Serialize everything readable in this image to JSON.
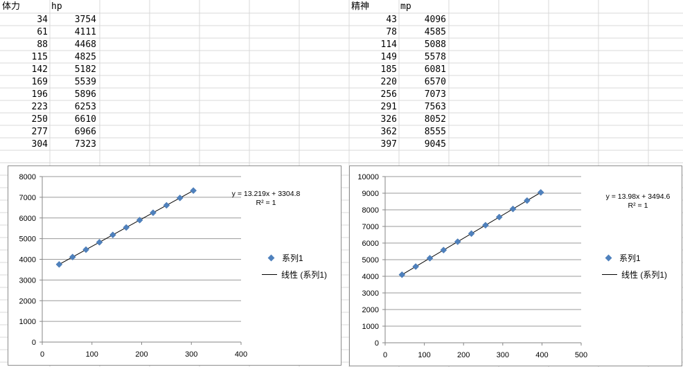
{
  "sheet": {
    "left_table": {
      "headers": [
        "体力",
        "hp"
      ],
      "rows": [
        [
          "34",
          "3754"
        ],
        [
          "61",
          "4111"
        ],
        [
          "88",
          "4468"
        ],
        [
          "115",
          "4825"
        ],
        [
          "142",
          "5182"
        ],
        [
          "169",
          "5539"
        ],
        [
          "196",
          "5896"
        ],
        [
          "223",
          "6253"
        ],
        [
          "250",
          "6610"
        ],
        [
          "277",
          "6966"
        ],
        [
          "304",
          "7323"
        ]
      ]
    },
    "right_table": {
      "headers": [
        "精神",
        "mp"
      ],
      "rows": [
        [
          "43",
          "4096"
        ],
        [
          "78",
          "4585"
        ],
        [
          "114",
          "5088"
        ],
        [
          "149",
          "5578"
        ],
        [
          "185",
          "6081"
        ],
        [
          "220",
          "6570"
        ],
        [
          "256",
          "7073"
        ],
        [
          "291",
          "7563"
        ],
        [
          "326",
          "8052"
        ],
        [
          "362",
          "8555"
        ],
        [
          "397",
          "9045"
        ]
      ]
    }
  },
  "colors": {
    "marker": "#4f81bd",
    "gridline": "#9a9a9a",
    "trendline": "#000000",
    "sheet_grid": "#d9d9d9"
  },
  "chart_data": [
    {
      "type": "scatter",
      "series": [
        {
          "name": "系列1",
          "x": [
            34,
            61,
            88,
            115,
            142,
            169,
            196,
            223,
            250,
            277,
            304
          ],
          "y": [
            3754,
            4111,
            4468,
            4825,
            5182,
            5539,
            5896,
            6253,
            6610,
            6966,
            7323
          ]
        }
      ],
      "trendline": {
        "label": "线性 (系列1)",
        "slope": 13.219,
        "intercept": 3304.8
      },
      "equation": "y = 13.219x + 3304.8",
      "r2": "R² = 1",
      "xlim": [
        0,
        400
      ],
      "ylim": [
        0,
        8000
      ],
      "xticks": [
        0,
        100,
        200,
        300,
        400
      ],
      "yticks": [
        0,
        1000,
        2000,
        3000,
        4000,
        5000,
        6000,
        7000,
        8000
      ],
      "grid": "horizontal",
      "legend": "right"
    },
    {
      "type": "scatter",
      "series": [
        {
          "name": "系列1",
          "x": [
            43,
            78,
            114,
            149,
            185,
            220,
            256,
            291,
            326,
            362,
            397
          ],
          "y": [
            4096,
            4585,
            5088,
            5578,
            6081,
            6570,
            7073,
            7563,
            8052,
            8555,
            9045
          ]
        }
      ],
      "trendline": {
        "label": "线性 (系列1)",
        "slope": 13.98,
        "intercept": 3494.6
      },
      "equation": "y = 13.98x + 3494.6",
      "r2": "R² = 1",
      "xlim": [
        0,
        500
      ],
      "ylim": [
        0,
        10000
      ],
      "xticks": [
        0,
        100,
        200,
        300,
        400,
        500
      ],
      "yticks": [
        0,
        1000,
        2000,
        3000,
        4000,
        5000,
        6000,
        7000,
        8000,
        9000,
        10000
      ],
      "grid": "horizontal",
      "legend": "right"
    }
  ]
}
